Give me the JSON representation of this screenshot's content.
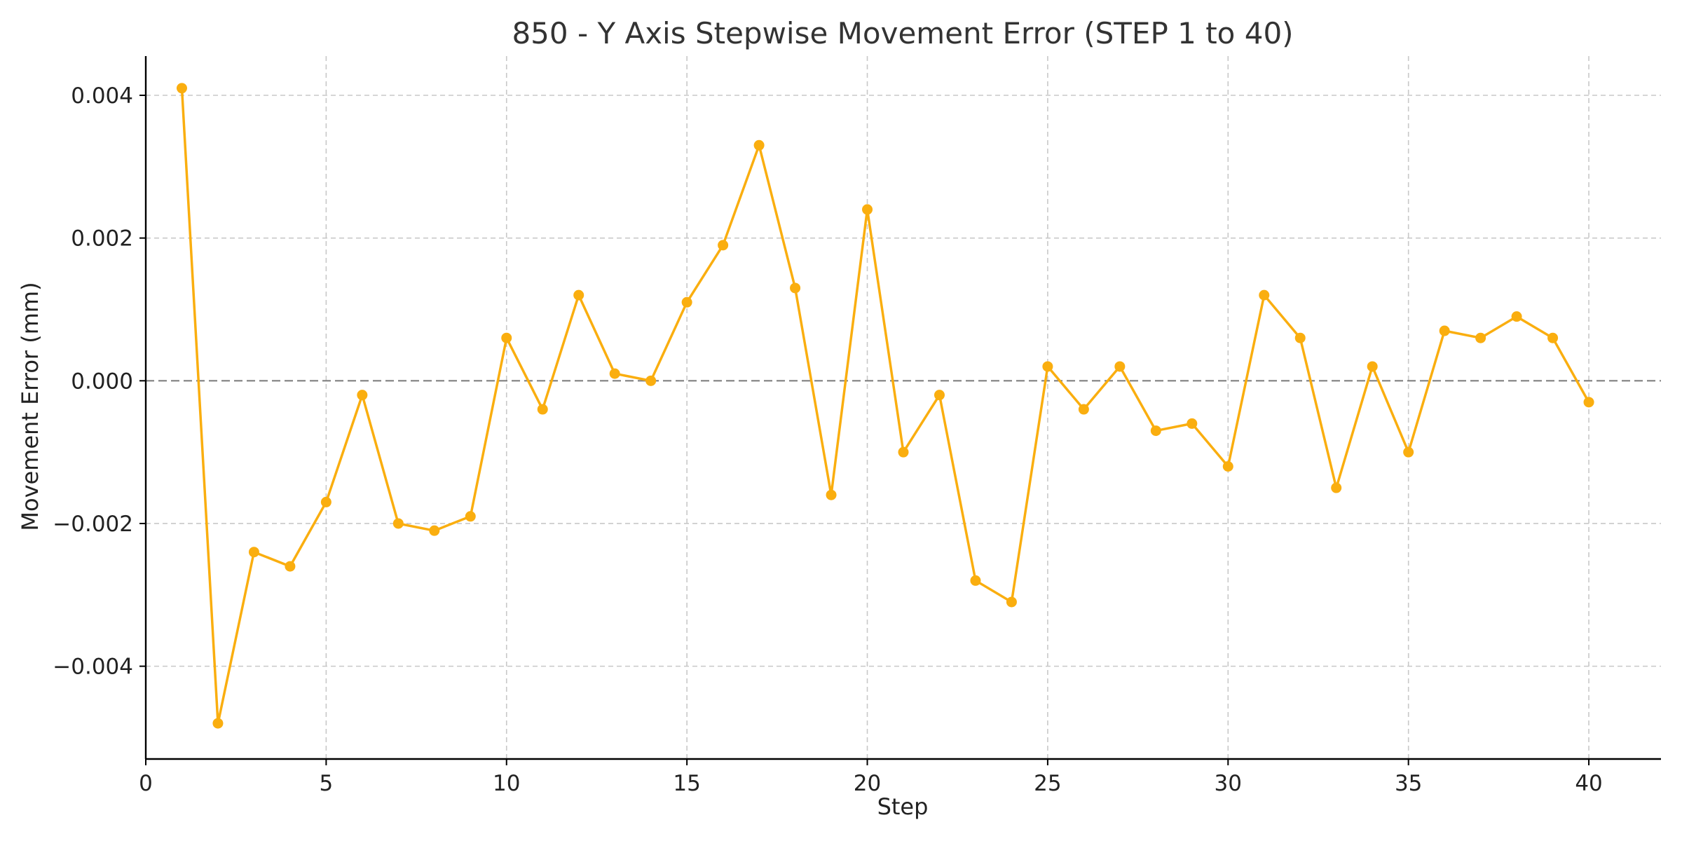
{
  "chart_data": {
    "type": "line",
    "title": "850 - Y Axis Stepwise Movement Error (STEP 1 to 40)",
    "xlabel": "Step",
    "ylabel": "Movement Error (mm)",
    "xlim": [
      0,
      42
    ],
    "ylim": [
      -0.0053,
      0.00455
    ],
    "x_ticks": [
      0,
      5,
      10,
      15,
      20,
      25,
      30,
      35,
      40
    ],
    "x_tick_labels": [
      "0",
      "5",
      "10",
      "15",
      "20",
      "25",
      "30",
      "35",
      "40"
    ],
    "y_ticks": [
      -0.004,
      -0.002,
      0.0,
      0.002,
      0.004
    ],
    "y_tick_labels": [
      "−0.004",
      "−0.002",
      "0.000",
      "0.002",
      "0.004"
    ],
    "grid": true,
    "reference_line": {
      "y": 0,
      "style": "dashed",
      "color": "#808080"
    },
    "series": [
      {
        "color": "#FAAE0F",
        "marker": "circle",
        "x": [
          1,
          2,
          3,
          4,
          5,
          6,
          7,
          8,
          9,
          10,
          11,
          12,
          13,
          14,
          15,
          16,
          17,
          18,
          19,
          20,
          21,
          22,
          23,
          24,
          25,
          26,
          27,
          28,
          29,
          30,
          31,
          32,
          33,
          34,
          35,
          36,
          37,
          38,
          39,
          40
        ],
        "values": [
          0.0041,
          -0.0048,
          -0.0024,
          -0.0026,
          -0.0017,
          -0.0002,
          -0.002,
          -0.0021,
          -0.0019,
          0.0006,
          -0.0004,
          0.0012,
          0.0001,
          0.0,
          0.0011,
          0.0019,
          0.0033,
          0.0013,
          -0.0016,
          0.0024,
          -0.001,
          -0.0002,
          -0.0028,
          -0.0031,
          0.0002,
          -0.0004,
          0.0002,
          -0.0007,
          -0.0006,
          -0.0012,
          0.0012,
          0.0006,
          -0.0015,
          0.0002,
          -0.001,
          0.0007,
          0.0006,
          0.0009,
          0.0006,
          -0.0003
        ]
      }
    ]
  }
}
